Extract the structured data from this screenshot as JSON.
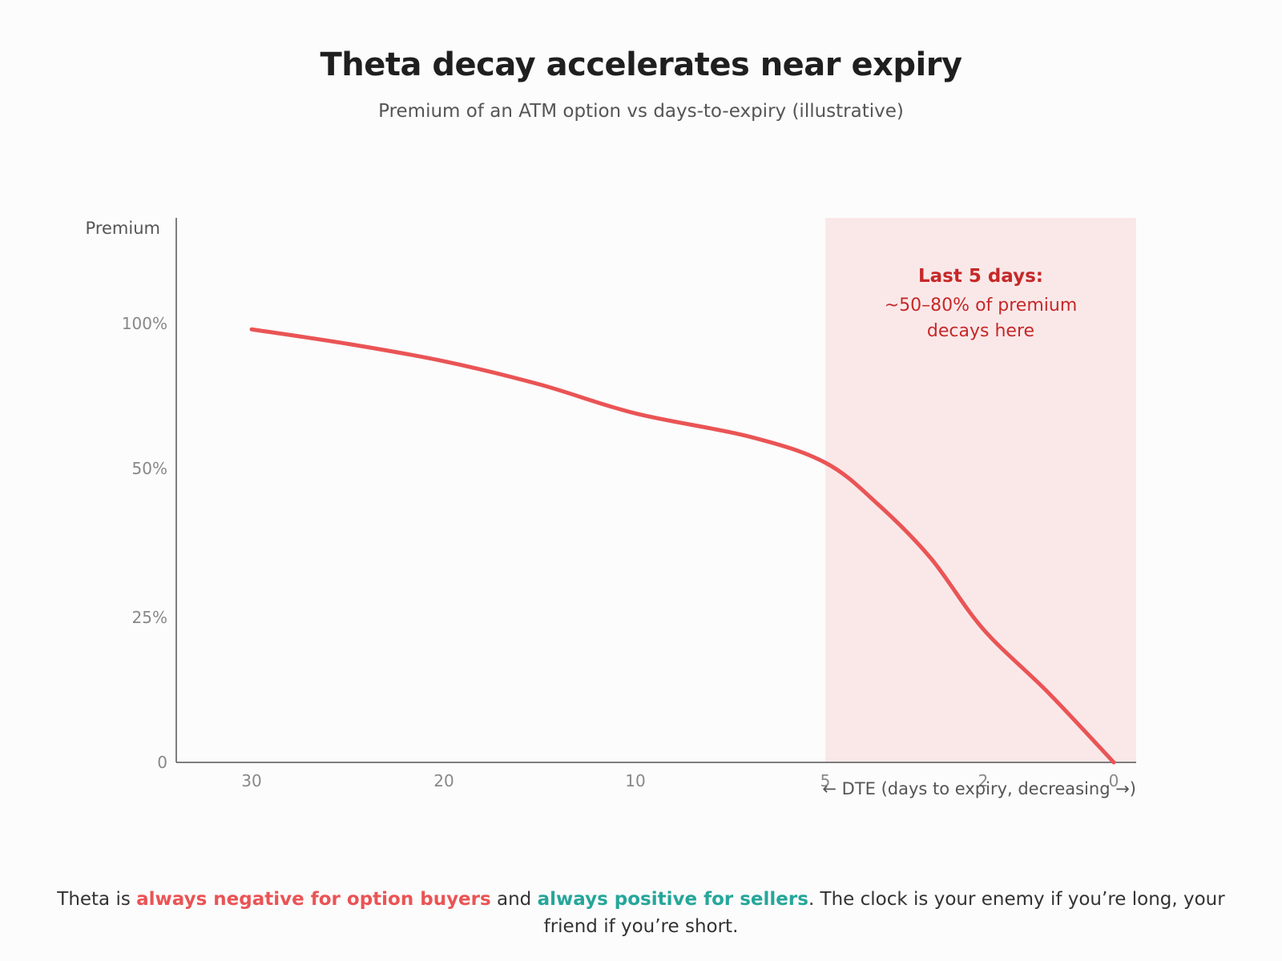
{
  "header": {
    "title": "Theta decay accelerates near expiry",
    "subtitle": "Premium of an ATM option vs days-to-expiry (illustrative)"
  },
  "chart_data": {
    "type": "line",
    "title": "Theta decay accelerates near expiry",
    "subtitle": "Premium of an ATM option vs days-to-expiry (illustrative)",
    "ylabel": "Premium",
    "xlabel": "← DTE (days to expiry, decreasing →)",
    "x_ticks": [
      {
        "value": 30,
        "label": "30"
      },
      {
        "value": 20,
        "label": "20"
      },
      {
        "value": 10,
        "label": "10"
      },
      {
        "value": 5,
        "label": "5"
      },
      {
        "value": 2,
        "label": "2"
      },
      {
        "value": 0,
        "label": "0"
      }
    ],
    "y_ticks": [
      {
        "value": 100,
        "label": "100%"
      },
      {
        "value": 50,
        "label": "50%"
      },
      {
        "value": 25,
        "label": "25%"
      },
      {
        "value": 0,
        "label": "0"
      }
    ],
    "grid": false,
    "x_direction": "decreasing",
    "series": [
      {
        "color": "#ea5455",
        "points": [
          {
            "x": 30,
            "y": 98
          },
          {
            "x": 25,
            "y": 93
          },
          {
            "x": 20,
            "y": 87
          },
          {
            "x": 15,
            "y": 79
          },
          {
            "x": 10,
            "y": 69
          },
          {
            "x": 7,
            "y": 61
          },
          {
            "x": 5,
            "y": 52
          },
          {
            "x": 4,
            "y": 44
          },
          {
            "x": 3,
            "y": 35
          },
          {
            "x": 2,
            "y": 23
          },
          {
            "x": 1,
            "y": 12
          },
          {
            "x": 0,
            "y": 0
          }
        ]
      }
    ],
    "highlight_region": {
      "x_from": 5,
      "x_to": 0,
      "color": "#fae8e9",
      "title": "Last 5 days:",
      "lines": [
        "~50–80% of premium",
        "decays here"
      ],
      "text_color": "#c62828"
    },
    "colors": {
      "axis": "#555555",
      "tick_label": "#888888",
      "axis_label": "#555555"
    }
  },
  "footer": {
    "prefix": "Theta is ",
    "negative_phrase": "always negative for option buyers",
    "middle": " and ",
    "positive_phrase": "always positive for sellers",
    "suffix": ". The clock is your enemy if you’re long, your friend if you’re short."
  }
}
